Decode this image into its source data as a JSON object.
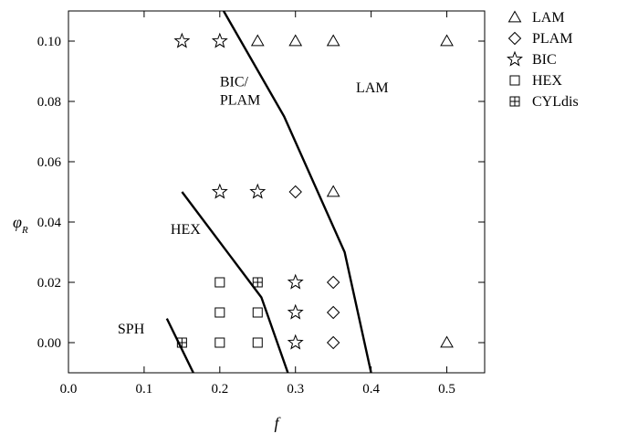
{
  "chart_data": {
    "type": "scatter",
    "title": "",
    "xlabel": "f",
    "ylabel_symbol": "φ",
    "ylabel_subscript": "R",
    "xlim": [
      0.0,
      0.55
    ],
    "ylim": [
      -0.01,
      0.11
    ],
    "x_ticks": [
      "0.0",
      "0.1",
      "0.2",
      "0.3",
      "0.4",
      "0.5"
    ],
    "x_tick_values": [
      0.0,
      0.1,
      0.2,
      0.3,
      0.4,
      0.5
    ],
    "y_ticks": [
      "0.00",
      "0.02",
      "0.04",
      "0.06",
      "0.08",
      "0.10"
    ],
    "y_tick_values": [
      0.0,
      0.02,
      0.04,
      0.06,
      0.08,
      0.1
    ],
    "grid": false,
    "legend_position": "outside-right-top",
    "series": [
      {
        "name": "LAM",
        "marker": "triangle",
        "points": [
          [
            0.25,
            0.1
          ],
          [
            0.3,
            0.1
          ],
          [
            0.35,
            0.1
          ],
          [
            0.5,
            0.1
          ],
          [
            0.35,
            0.05
          ],
          [
            0.5,
            0.0
          ]
        ]
      },
      {
        "name": "PLAM",
        "marker": "diamond",
        "points": [
          [
            0.3,
            0.05
          ],
          [
            0.35,
            0.02
          ],
          [
            0.35,
            0.01
          ],
          [
            0.35,
            0.0
          ]
        ]
      },
      {
        "name": "BIC",
        "marker": "star",
        "points": [
          [
            0.15,
            0.1
          ],
          [
            0.2,
            0.1
          ],
          [
            0.2,
            0.05
          ],
          [
            0.25,
            0.05
          ],
          [
            0.3,
            0.02
          ],
          [
            0.3,
            0.01
          ],
          [
            0.3,
            0.0
          ]
        ]
      },
      {
        "name": "HEX",
        "marker": "square",
        "points": [
          [
            0.2,
            0.02
          ],
          [
            0.2,
            0.01
          ],
          [
            0.25,
            0.01
          ],
          [
            0.2,
            0.0
          ],
          [
            0.25,
            0.0
          ]
        ]
      },
      {
        "name": "CYLdis",
        "marker": "boxplus",
        "points": [
          [
            0.25,
            0.02
          ],
          [
            0.15,
            0.0
          ]
        ]
      }
    ],
    "boundaries": [
      {
        "points": [
          [
            0.205,
            0.11
          ],
          [
            0.285,
            0.075
          ],
          [
            0.365,
            0.03
          ],
          [
            0.4,
            -0.01
          ]
        ]
      },
      {
        "points": [
          [
            0.15,
            0.05
          ],
          [
            0.255,
            0.015
          ],
          [
            0.29,
            -0.01
          ]
        ]
      },
      {
        "points": [
          [
            0.13,
            0.008
          ],
          [
            0.165,
            -0.01
          ]
        ]
      }
    ],
    "region_labels": [
      {
        "lines": [
          "BIC/",
          "PLAM"
        ],
        "x": 0.2,
        "y": 0.085
      },
      {
        "lines": [
          "LAM"
        ],
        "x": 0.38,
        "y": 0.083
      },
      {
        "lines": [
          "HEX"
        ],
        "x": 0.135,
        "y": 0.036
      },
      {
        "lines": [
          "SPH"
        ],
        "x": 0.065,
        "y": 0.003
      }
    ]
  }
}
